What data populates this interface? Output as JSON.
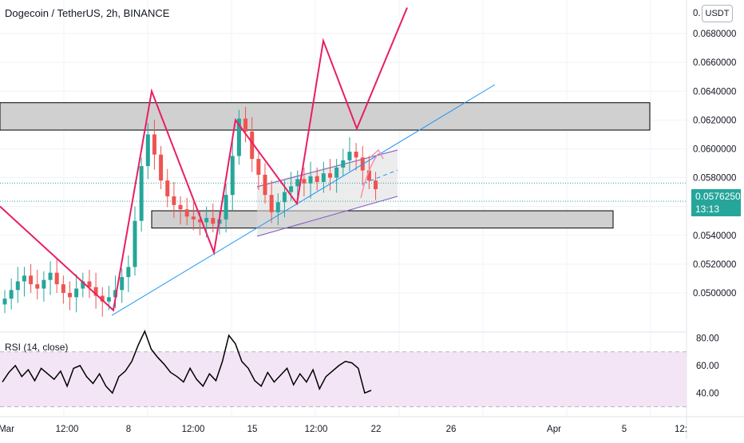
{
  "header": {
    "symbol": "Dogecoin / TetherUS, 2h, BINANCE",
    "unit": "USDT"
  },
  "current_price": {
    "value": "0.0576250",
    "countdown": "13:13"
  },
  "price_axis_labels": [
    "0.0680000",
    "0.0660000",
    "0.0640000",
    "0.0620000",
    "0.0600000",
    "0.0580000",
    "0.0560000",
    "0.0540000",
    "0.0520000",
    "0.0500000"
  ],
  "price_axis_top_label": "0.",
  "rsi": {
    "title": "RSI (14, close)",
    "labels": [
      "80.00",
      "60.00",
      "40.00"
    ],
    "upper_band": 70,
    "lower_band": 30
  },
  "time_axis_labels": [
    "Mar",
    "12:00",
    "8",
    "12:00",
    "15",
    "12:00",
    "22",
    "26",
    "Apr",
    "5",
    "12:"
  ],
  "colors": {
    "bull": "#26a69a",
    "bear": "#ef5350",
    "zigzag": "#e91e63",
    "trendline": "#2196f3",
    "channel": "#7e57c2",
    "zone_fill": "#c8c8c8",
    "rsi_band": "#f3e5f5",
    "rsi_line": "#000000"
  },
  "chart_data": [
    {
      "type": "candlestick",
      "title": "Dogecoin / TetherUS, 2h, BINANCE",
      "y_unit": "USDT",
      "ylim": [
        0.0486,
        0.0692
      ],
      "x_ticks": [
        "Mar",
        "12:00",
        "8",
        "12:00",
        "15",
        "12:00",
        "22",
        "26",
        "Apr",
        "5",
        "12:"
      ],
      "last_price": 0.057625,
      "series": [
        {
          "name": "price (approx. closes)",
          "values": [
            0.0496,
            0.0502,
            0.0508,
            0.0512,
            0.0506,
            0.0503,
            0.0509,
            0.0514,
            0.0506,
            0.05,
            0.0497,
            0.0503,
            0.0508,
            0.0504,
            0.0498,
            0.0494,
            0.0497,
            0.0502,
            0.0511,
            0.0518,
            0.055,
            0.0588,
            0.061,
            0.0596,
            0.0578,
            0.0567,
            0.0561,
            0.0558,
            0.0553,
            0.0551,
            0.0549,
            0.0552,
            0.0548,
            0.0551,
            0.0568,
            0.0595,
            0.0621,
            0.0612,
            0.0593,
            0.0582,
            0.0568,
            0.0556,
            0.0563,
            0.057,
            0.0574,
            0.0579,
            0.0576,
            0.0581,
            0.0577,
            0.0583,
            0.058,
            0.0587,
            0.0592,
            0.0598,
            0.0594,
            0.0585,
            0.0578,
            0.0572
          ]
        }
      ],
      "annotations": {
        "resistance_zone": [
          0.0613,
          0.0632
        ],
        "support_zone": [
          0.0545,
          0.0557
        ],
        "zigzag_path": [
          0.056,
          0.0488,
          0.064,
          0.0528,
          0.062,
          0.0562,
          0.0675,
          0.0614,
          0.0698
        ],
        "trendline": [
          0.0486,
          0.065
        ]
      }
    },
    {
      "type": "line",
      "title": "RSI (14, close)",
      "ylim": [
        25,
        85
      ],
      "bands": [
        30,
        70
      ],
      "y_ticks": [
        80,
        60,
        40
      ],
      "series": [
        {
          "name": "RSI (14, close)",
          "values": [
            48,
            55,
            60,
            52,
            57,
            49,
            58,
            54,
            50,
            56,
            45,
            58,
            60,
            52,
            47,
            54,
            45,
            40,
            52,
            56,
            63,
            75,
            85,
            72,
            66,
            61,
            55,
            52,
            48,
            58,
            50,
            45,
            54,
            49,
            63,
            82,
            76,
            63,
            58,
            49,
            45,
            55,
            48,
            53,
            58,
            46,
            54,
            48,
            57,
            43,
            52,
            56,
            60,
            63,
            62,
            58,
            40,
            42
          ]
        }
      ]
    }
  ]
}
